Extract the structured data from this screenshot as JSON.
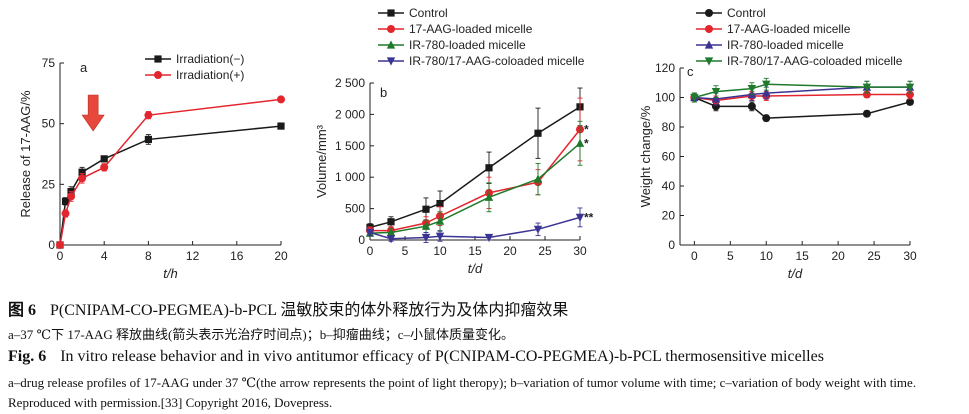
{
  "colors": {
    "control": "#1a1a1a",
    "aag": "#e3262d",
    "ir780": "#1f7a2c",
    "co": "#3b3493",
    "axis": "#222222",
    "arrow": "#e8473c"
  },
  "caption": {
    "zh_fig": "图 6",
    "zh_title": "P(CNIPAM-CO-PEGMEA)-b-PCL 温敏胶束的体外释放行为及体内抑瘤效果",
    "zh_sub": "a–37 ℃下 17-AAG 释放曲线(箭头表示光治疗时间点)；b–抑瘤曲线；c–小鼠体质量变化。",
    "en_fig": "Fig. 6",
    "en_title": "In vitro release behavior and in vivo antitumor efficacy of P(CNIPAM-CO-PEGMEA)-b-PCL thermosensitive micelles",
    "en_sub": "a–drug release profiles of 17-AAG under 37 ℃(the arrow represents the point of light theropy); b–variation of tumor volume with time; c–variation of body weight with time. Reproduced with permission.[33] Copyright 2016, Dovepress."
  },
  "chart_data": [
    {
      "type": "line",
      "panel_label": "a",
      "xlabel": "t/h",
      "ylabel": "Release of 17-AAG/%",
      "xlim": [
        0,
        20
      ],
      "ylim": [
        0,
        75
      ],
      "xticks": [
        0,
        4,
        8,
        12,
        16,
        20
      ],
      "yticks": [
        0,
        25,
        50,
        75
      ],
      "legend_position": "top-right",
      "arrow_at_x": 3,
      "series": [
        {
          "name": "Irradiation(−)",
          "color_key": "control",
          "marker": "square",
          "x": [
            0,
            0.5,
            1,
            2,
            4,
            8,
            20
          ],
          "y": [
            0,
            18,
            22,
            30,
            35.5,
            43.5,
            49
          ],
          "err": [
            0,
            1.5,
            2,
            2,
            1.2,
            2,
            0
          ]
        },
        {
          "name": "Irradiation(+)",
          "color_key": "aag",
          "marker": "circle",
          "x": [
            0,
            0.5,
            1,
            2,
            4,
            8,
            20
          ],
          "y": [
            0,
            13,
            20,
            27.5,
            32,
            53.5,
            60
          ],
          "err": [
            0,
            1.5,
            2,
            2,
            1.5,
            1.5,
            0
          ]
        }
      ]
    },
    {
      "type": "line",
      "panel_label": "b",
      "xlabel": "t/d",
      "ylabel": "Volume/mm³",
      "xlim": [
        0,
        30
      ],
      "ylim": [
        0,
        2500
      ],
      "xticks": [
        0,
        5,
        10,
        15,
        20,
        25,
        30
      ],
      "yticks": [
        0,
        500,
        1000,
        1500,
        2000,
        2500
      ],
      "ytick_labels": [
        "0",
        "500",
        "1 000",
        "1 500",
        "2 000",
        "2 500"
      ],
      "legend_position": "top-left",
      "annotations": [
        {
          "x": 30,
          "y": 1760,
          "text": "*"
        },
        {
          "x": 30,
          "y": 1540,
          "text": "*"
        },
        {
          "x": 30,
          "y": 360,
          "text": "**"
        }
      ],
      "series": [
        {
          "name": "Control",
          "color_key": "control",
          "marker": "square",
          "x": [
            0,
            3,
            8,
            10,
            17,
            24,
            30
          ],
          "y": [
            200,
            290,
            490,
            580,
            1150,
            1700,
            2120
          ],
          "err": [
            60,
            80,
            180,
            200,
            250,
            400,
            300
          ]
        },
        {
          "name": "17-AAG-loaded micelle",
          "color_key": "aag",
          "marker": "circle",
          "x": [
            0,
            3,
            8,
            10,
            17,
            24,
            30
          ],
          "y": [
            150,
            150,
            270,
            380,
            750,
            920,
            1760
          ],
          "err": [
            60,
            60,
            100,
            150,
            250,
            200,
            500
          ]
        },
        {
          "name": "IR-780-loaded micelle",
          "color_key": "ir780",
          "marker": "triangle-up",
          "x": [
            0,
            3,
            8,
            10,
            17,
            24,
            30
          ],
          "y": [
            110,
            120,
            220,
            300,
            680,
            970,
            1540
          ],
          "err": [
            50,
            60,
            100,
            150,
            230,
            250,
            350
          ]
        },
        {
          "name": "IR-780/17-AAG-coloaded micelle",
          "color_key": "co",
          "marker": "triangle-down",
          "x": [
            0,
            3,
            8,
            10,
            17,
            24,
            30
          ],
          "y": [
            120,
            20,
            40,
            60,
            40,
            170,
            360
          ],
          "err": [
            50,
            40,
            80,
            80,
            40,
            100,
            150
          ]
        }
      ]
    },
    {
      "type": "line",
      "panel_label": "c",
      "xlabel": "t/d",
      "ylabel": "Weight change/%",
      "xlim": [
        -2,
        30
      ],
      "ylim": [
        0,
        120
      ],
      "xticks": [
        0,
        5,
        10,
        15,
        20,
        25,
        30
      ],
      "yticks": [
        0,
        20,
        40,
        60,
        80,
        100,
        120
      ],
      "legend_position": "top-left",
      "series": [
        {
          "name": "Control",
          "color_key": "control",
          "marker": "circle",
          "x": [
            0,
            3,
            8,
            10,
            24,
            30
          ],
          "y": [
            100,
            94,
            94,
            86,
            89,
            97
          ],
          "err": [
            3,
            3,
            3,
            2,
            2,
            2
          ]
        },
        {
          "name": "17-AAG-loaded micelle",
          "color_key": "aag",
          "marker": "circle",
          "x": [
            0,
            3,
            8,
            10,
            24,
            30
          ],
          "y": [
            100,
            98,
            101,
            101,
            102,
            102
          ],
          "err": [
            3,
            3,
            3,
            3,
            2,
            3
          ]
        },
        {
          "name": "IR-780-loaded micelle",
          "color_key": "co",
          "marker": "triangle-up",
          "x": [
            0,
            3,
            8,
            10,
            24,
            30
          ],
          "y": [
            100,
            99,
            102,
            103,
            107,
            107
          ],
          "err": [
            3,
            4,
            4,
            4,
            4,
            4
          ]
        },
        {
          "name": "IR-780/17-AAG-coloaded micelle",
          "color_key": "ir780",
          "marker": "triangle-down",
          "x": [
            0,
            3,
            8,
            10,
            24,
            30
          ],
          "y": [
            100,
            104,
            106,
            109,
            107,
            107
          ],
          "err": [
            3,
            4,
            4,
            4,
            4,
            4
          ]
        }
      ]
    }
  ]
}
